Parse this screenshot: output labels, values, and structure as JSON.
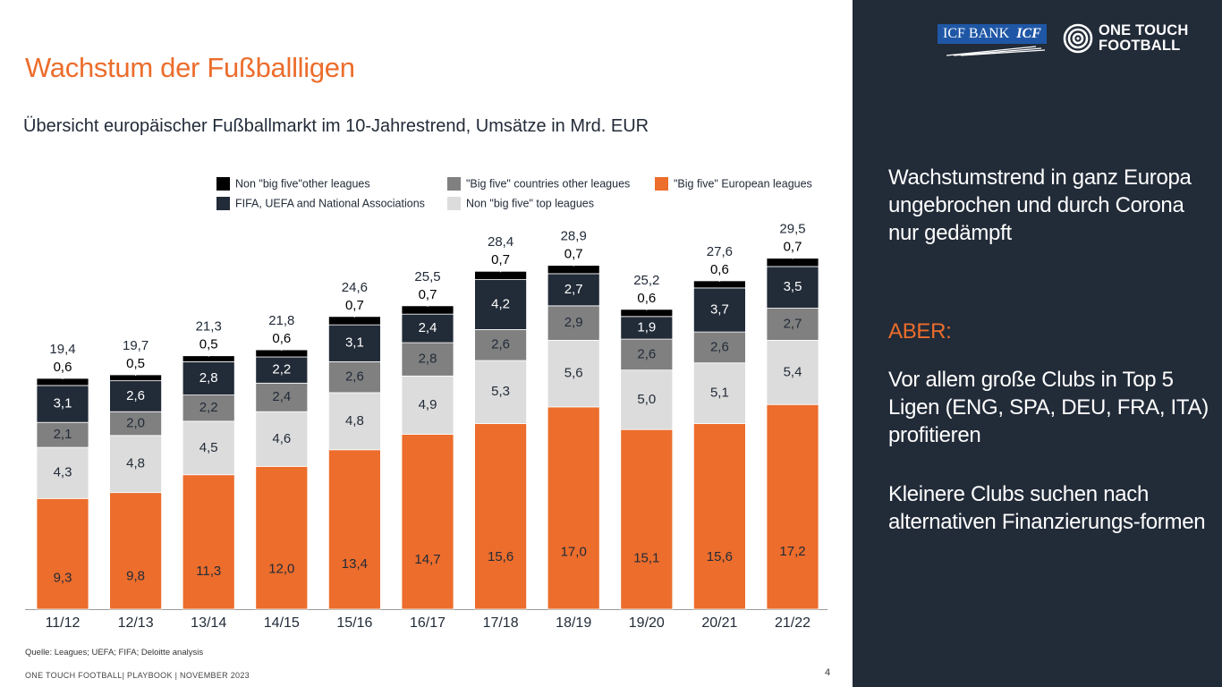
{
  "title": "Wachstum der Fußballligen",
  "subtitle": "Übersicht europäischer Fußballmarkt im 10-Jahrestrend, Umsätze in Mrd. EUR",
  "source": "Quelle: Leagues; UEFA; FIFA; Deloitte analysis",
  "footer": "ONE TOUCH FOOTBALL| PLAYBOOK | NOVEMBER 2023",
  "page_number": "4",
  "panel": {
    "logo_icf": "ICF BANK",
    "logo_icf_mark": "ICF",
    "logo_otf_line1": "ONE TOUCH",
    "logo_otf_line2": "FOOTBALL",
    "text1": "Wachstumstrend in ganz Europa ungebrochen und durch Corona nur gedämpft",
    "text2": "ABER:",
    "text3": "Vor allem große Clubs in Top 5 Ligen (ENG, SPA, DEU, FRA, ITA) profitieren",
    "text4": "Kleinere Clubs suchen nach alternativen Finanzierungs-formen"
  },
  "colors": {
    "accent": "#ec6d2c",
    "navy": "#222b38",
    "gray": "#808080",
    "lightgray": "#dcdcdc",
    "black": "#000000"
  },
  "chart_data": {
    "type": "bar",
    "stacked": true,
    "categories": [
      "11/12",
      "12/13",
      "13/14",
      "14/15",
      "15/16",
      "16/17",
      "17/18",
      "18/19",
      "19/20",
      "20/21",
      "21/22"
    ],
    "series": [
      {
        "name": "\"Big five\" European leagues",
        "color": "#ec6d2c",
        "values": [
          9.3,
          9.8,
          11.3,
          12.0,
          13.4,
          14.7,
          15.6,
          17.0,
          15.1,
          15.6,
          17.2
        ],
        "labels": [
          "9,3",
          "9,8",
          "11,3",
          "12,0",
          "13,4",
          "14,7",
          "15,6",
          "17,0",
          "15,1",
          "15,6",
          "17,2"
        ]
      },
      {
        "name": "Non \"big five\" top leagues",
        "color": "#dcdcdc",
        "values": [
          4.3,
          4.8,
          4.5,
          4.6,
          4.8,
          4.9,
          5.3,
          5.6,
          5.0,
          5.1,
          5.4
        ],
        "labels": [
          "4,3",
          "4,8",
          "4,5",
          "4,6",
          "4,8",
          "4,9",
          "5,3",
          "5,6",
          "5,0",
          "5,1",
          "5,4"
        ]
      },
      {
        "name": "\"Big five\" countries other leagues",
        "color": "#808080",
        "values": [
          2.1,
          2.0,
          2.2,
          2.4,
          2.6,
          2.8,
          2.6,
          2.9,
          2.6,
          2.6,
          2.7
        ],
        "labels": [
          "2,1",
          "2,0",
          "2,2",
          "2,4",
          "2,6",
          "2,8",
          "2,6",
          "2,9",
          "2,6",
          "2,6",
          "2,7"
        ]
      },
      {
        "name": "FIFA, UEFA and National Associations",
        "color": "#222b38",
        "values": [
          3.1,
          2.6,
          2.8,
          2.2,
          3.1,
          2.4,
          4.2,
          2.7,
          1.9,
          3.7,
          3.5
        ],
        "labels": [
          "3,1",
          "2,6",
          "2,8",
          "2,2",
          "3,1",
          "2,4",
          "4,2",
          "2,7",
          "1,9",
          "3,7",
          "3,5"
        ]
      },
      {
        "name": "Non \"big five\"other leagues",
        "color": "#000000",
        "values": [
          0.6,
          0.5,
          0.5,
          0.6,
          0.7,
          0.7,
          0.7,
          0.7,
          0.6,
          0.6,
          0.7
        ],
        "labels": [
          "0,6",
          "0,5",
          "0,5",
          "0,6",
          "0,7",
          "0,7",
          "0,7",
          "0,7",
          "0,6",
          "0,6",
          "0,7"
        ]
      }
    ],
    "totals": [
      19.4,
      19.7,
      21.3,
      21.8,
      24.6,
      25.5,
      28.4,
      28.9,
      25.2,
      27.6,
      29.5
    ],
    "total_labels": [
      "19,4",
      "19,7",
      "21,3",
      "21,8",
      "24,6",
      "25,5",
      "28,4",
      "28,9",
      "25,2",
      "27,6",
      "29,5"
    ],
    "legend": {
      "placement": "top",
      "order": [
        4,
        2,
        0,
        3,
        1
      ]
    },
    "ylim": [
      0,
      30
    ],
    "grid": false
  }
}
